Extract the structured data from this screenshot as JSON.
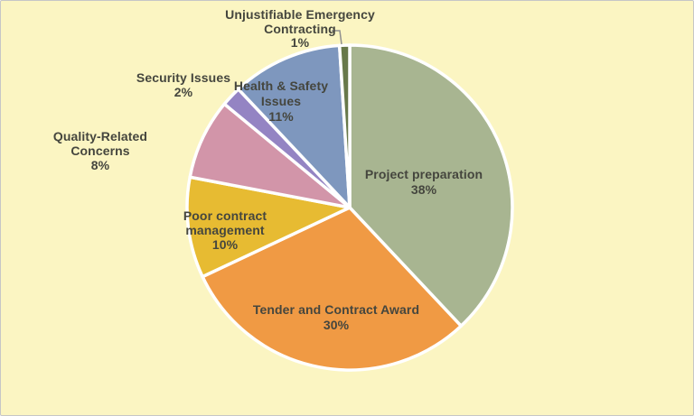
{
  "page": {
    "background_color": "#FBF5C2",
    "border_color": "#C6C6C6",
    "text_color": "#45463E"
  },
  "chart_data": {
    "type": "pie",
    "title": "",
    "start_angle_deg": 0,
    "direction": "clockwise",
    "slice_border_color": "#FFFFFF",
    "legend": "none (labels placed on or beside slices)",
    "slices": [
      {
        "label": "Project preparation",
        "value": 38,
        "pct_text": "38%",
        "color": "#A8B591",
        "label_position": "inside"
      },
      {
        "label": "Tender and Contract Award",
        "value": 30,
        "pct_text": "30%",
        "color": "#F09A44",
        "label_position": "inside"
      },
      {
        "label": "Poor contract management",
        "value": 10,
        "pct_text": "10%",
        "color": "#E7BB32",
        "label_position": "inside"
      },
      {
        "label": "Quality-Related Concerns",
        "value": 8,
        "pct_text": "8%",
        "color": "#D295A9",
        "label_position": "outside"
      },
      {
        "label": "Security Issues",
        "value": 2,
        "pct_text": "2%",
        "color": "#9484C3",
        "label_position": "outside"
      },
      {
        "label": "Health & Safety Issues",
        "value": 11,
        "pct_text": "11%",
        "color": "#7E97BE",
        "label_position": "inside"
      },
      {
        "label": "Unjustifiable Emergency Contracting",
        "value": 1,
        "pct_text": "1%",
        "color": "#68794A",
        "label_position": "outside-with-leader-line"
      }
    ],
    "leader_line_color": "#8F8F8F"
  }
}
